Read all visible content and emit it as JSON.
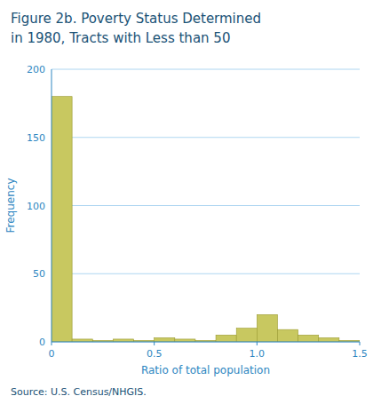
{
  "chart_data": {
    "type": "histogram",
    "title": "Figure 2b. Poverty Status Determined",
    "subtitle": "in 1980, Tracts with Less than 50",
    "x_label": "Ratio of total population",
    "y_label": "Frequency",
    "source": "Source:  U.S. Census/NHGIS.",
    "color": "#c8c860",
    "bins": [
      0.0,
      0.1,
      0.2,
      0.3,
      0.4,
      0.5,
      0.6,
      0.7,
      0.8,
      0.9,
      1.0,
      1.1,
      1.2,
      1.3,
      1.4,
      1.5
    ],
    "values": [
      180,
      2,
      1,
      2,
      1,
      3,
      2,
      1,
      5,
      10,
      20,
      9,
      5,
      3,
      1
    ],
    "xlim": [
      0,
      1.5
    ],
    "ylim": [
      0,
      200
    ],
    "xticks": [
      0,
      0.5,
      {
        "value": 1.0,
        "label": "1.0"
      },
      1.5
    ],
    "yticks": [
      0,
      50,
      100,
      150,
      200
    ],
    "grid": true
  }
}
